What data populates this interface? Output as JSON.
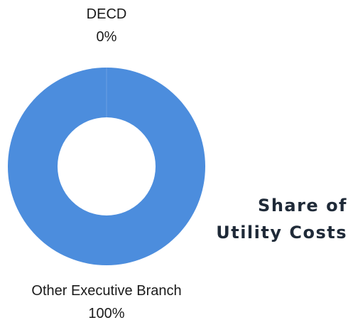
{
  "chart_data": {
    "type": "pie",
    "style": "donut",
    "title_lines": [
      "Share of",
      "Utility Costs"
    ],
    "slices": [
      {
        "label": "DECD",
        "value": 0,
        "value_label": "0%",
        "color": "#4c8ddd"
      },
      {
        "label": "Other Executive Branch",
        "value": 100,
        "value_label": "100%",
        "color": "#4c8ddd"
      }
    ],
    "legend": "none"
  }
}
